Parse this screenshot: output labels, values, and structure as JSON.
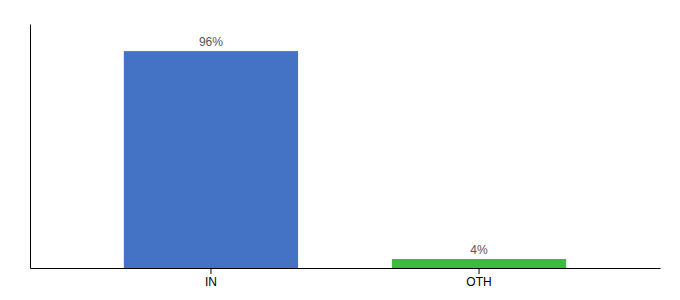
{
  "chart_data": {
    "type": "bar",
    "categories": [
      "IN",
      "OTH"
    ],
    "values": [
      96,
      4
    ],
    "value_labels": [
      "96%",
      "4%"
    ],
    "colors": [
      "#4472c4",
      "#3dbb3d"
    ],
    "ylim": [
      0,
      108
    ],
    "data_labels": true,
    "grid": false,
    "tick_labels": "x"
  }
}
